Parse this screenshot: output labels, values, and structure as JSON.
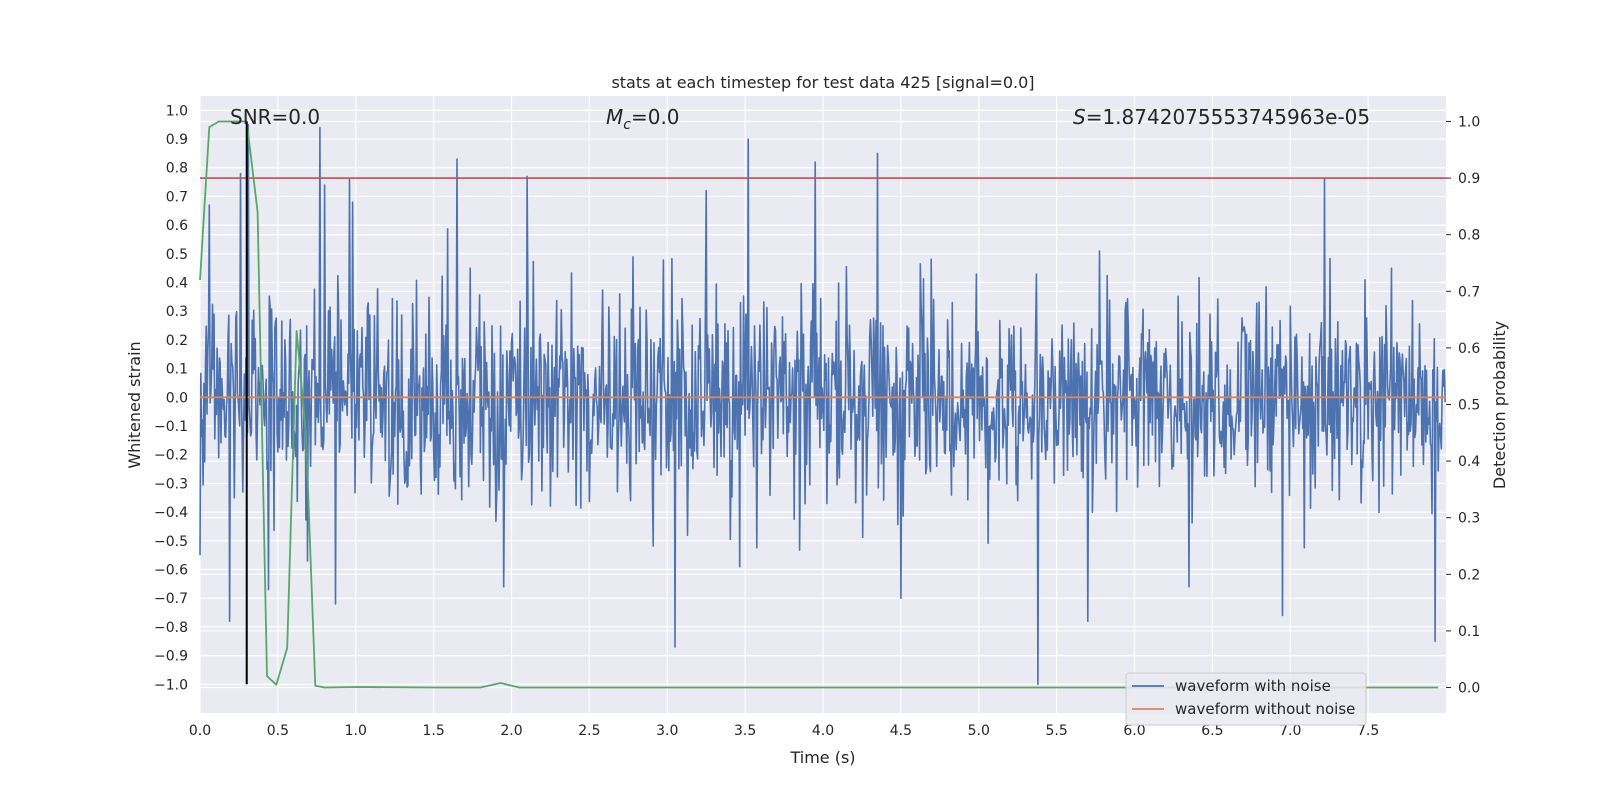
{
  "chart_data": {
    "type": "line",
    "title": "stats at each timestep for test data 425 [signal=0.0]",
    "xlabel": "Time (s)",
    "ylabel_left": "Whitened strain",
    "ylabel_right": "Detection probability",
    "xlim": [
      0,
      8
    ],
    "ylim_left": [
      -1.1,
      1.05
    ],
    "ylim_right": [
      -0.045,
      1.045
    ],
    "x_ticks": [
      0,
      0.5,
      1,
      1.5,
      2,
      2.5,
      3,
      3.5,
      4,
      4.5,
      5,
      5.5,
      6,
      6.5,
      7,
      7.5
    ],
    "x_tick_labels": [
      "0.0",
      "0.5",
      "1.0",
      "1.5",
      "2.0",
      "2.5",
      "3.0",
      "3.5",
      "4.0",
      "4.5",
      "5.0",
      "5.5",
      "6.0",
      "6.5",
      "7.0",
      "7.5"
    ],
    "y_left_ticks": [
      1.0,
      0.9,
      0.8,
      0.7,
      0.6,
      0.5,
      0.4,
      0.3,
      0.2,
      0.1,
      0.0,
      -0.1,
      -0.2,
      -0.3,
      -0.4,
      -0.5,
      -0.6,
      -0.7,
      -0.8,
      -0.9,
      -1.0
    ],
    "y_left_tick_labels": [
      "1.0",
      "0.9",
      "0.8",
      "0.7",
      "0.6",
      "0.5",
      "0.4",
      "0.3",
      "0.2",
      "0.1",
      "0.0",
      "−0.1",
      "−0.2",
      "−0.3",
      "−0.4",
      "−0.5",
      "−0.6",
      "−0.7",
      "−0.8",
      "−0.9",
      "−1.0"
    ],
    "y_right_ticks": [
      1.0,
      0.9,
      0.8,
      0.7,
      0.6,
      0.5,
      0.4,
      0.3,
      0.2,
      0.1,
      0.0
    ],
    "y_right_tick_labels": [
      "1.0",
      "0.9",
      "0.8",
      "0.7",
      "0.6",
      "0.5",
      "0.4",
      "0.3",
      "0.2",
      "0.1",
      "0.0"
    ],
    "annotations": {
      "snr": "SNR=0.0",
      "mc_symbol": "M",
      "mc_sub": "c",
      "mc_value": "=0.0",
      "s_symbol": "S",
      "s_value": "=1.8742075553745963e-05"
    },
    "threshold": 0.9,
    "marker_time": 0.3,
    "series": [
      {
        "name": "waveform with noise",
        "color": "#4c72b0",
        "axis": "left",
        "duration": 8,
        "samples": 1600,
        "typical_amplitude": 0.32,
        "positive_peaks": [
          {
            "x": 0.0,
            "y": 0.84
          },
          {
            "x": 0.06,
            "y": 0.67
          },
          {
            "x": 0.26,
            "y": 0.78
          },
          {
            "x": 0.31,
            "y": 0.95
          },
          {
            "x": 0.77,
            "y": 0.94
          },
          {
            "x": 0.8,
            "y": 0.74
          },
          {
            "x": 0.96,
            "y": 0.76
          },
          {
            "x": 1.65,
            "y": 0.83
          },
          {
            "x": 2.1,
            "y": 0.77
          },
          {
            "x": 3.25,
            "y": 0.72
          },
          {
            "x": 3.52,
            "y": 0.9
          },
          {
            "x": 3.95,
            "y": 0.82
          },
          {
            "x": 4.35,
            "y": 0.85
          },
          {
            "x": 7.22,
            "y": 0.76
          }
        ],
        "negative_peaks": [
          {
            "x": 0.0,
            "y": -0.55
          },
          {
            "x": 0.19,
            "y": -0.78
          },
          {
            "x": 0.44,
            "y": -0.67
          },
          {
            "x": 0.69,
            "y": -0.57
          },
          {
            "x": 0.87,
            "y": -0.72
          },
          {
            "x": 1.95,
            "y": -0.66
          },
          {
            "x": 3.05,
            "y": -0.87
          },
          {
            "x": 4.5,
            "y": -0.7
          },
          {
            "x": 5.38,
            "y": -1.0
          },
          {
            "x": 5.7,
            "y": -0.78
          },
          {
            "x": 6.35,
            "y": -0.66
          },
          {
            "x": 6.95,
            "y": -0.76
          },
          {
            "x": 7.93,
            "y": -0.85
          }
        ]
      },
      {
        "name": "waveform without noise",
        "color": "#dd8452",
        "axis": "left",
        "x": [
          0,
          8
        ],
        "y": [
          0,
          0
        ]
      },
      {
        "name": "detection probability",
        "color": "#55a868",
        "axis": "right",
        "x": [
          0.0,
          0.06,
          0.12,
          0.18,
          0.25,
          0.3,
          0.37,
          0.43,
          0.49,
          0.56,
          0.62,
          0.68,
          0.74,
          0.8,
          1.0,
          1.5,
          1.8,
          1.93,
          2.05,
          2.5,
          3.0,
          4.0,
          5.0,
          6.0,
          7.0,
          7.95
        ],
        "y": [
          0.72,
          0.99,
          1.0,
          1.0,
          1.0,
          1.0,
          0.84,
          0.02,
          0.005,
          0.07,
          0.63,
          0.45,
          0.003,
          0.0,
          0.001,
          0.0,
          0.0,
          0.008,
          0.0,
          0.0,
          0.0,
          0.0,
          0.0,
          0.0,
          0.0,
          0.0
        ]
      }
    ],
    "legend": {
      "placement": "lower-right",
      "entries": [
        "waveform with noise",
        "waveform without noise"
      ]
    },
    "colors": {
      "background": "#eaeaf2",
      "grid": "#ffffff",
      "threshold": "#c44e52",
      "marker": "#000000"
    }
  }
}
